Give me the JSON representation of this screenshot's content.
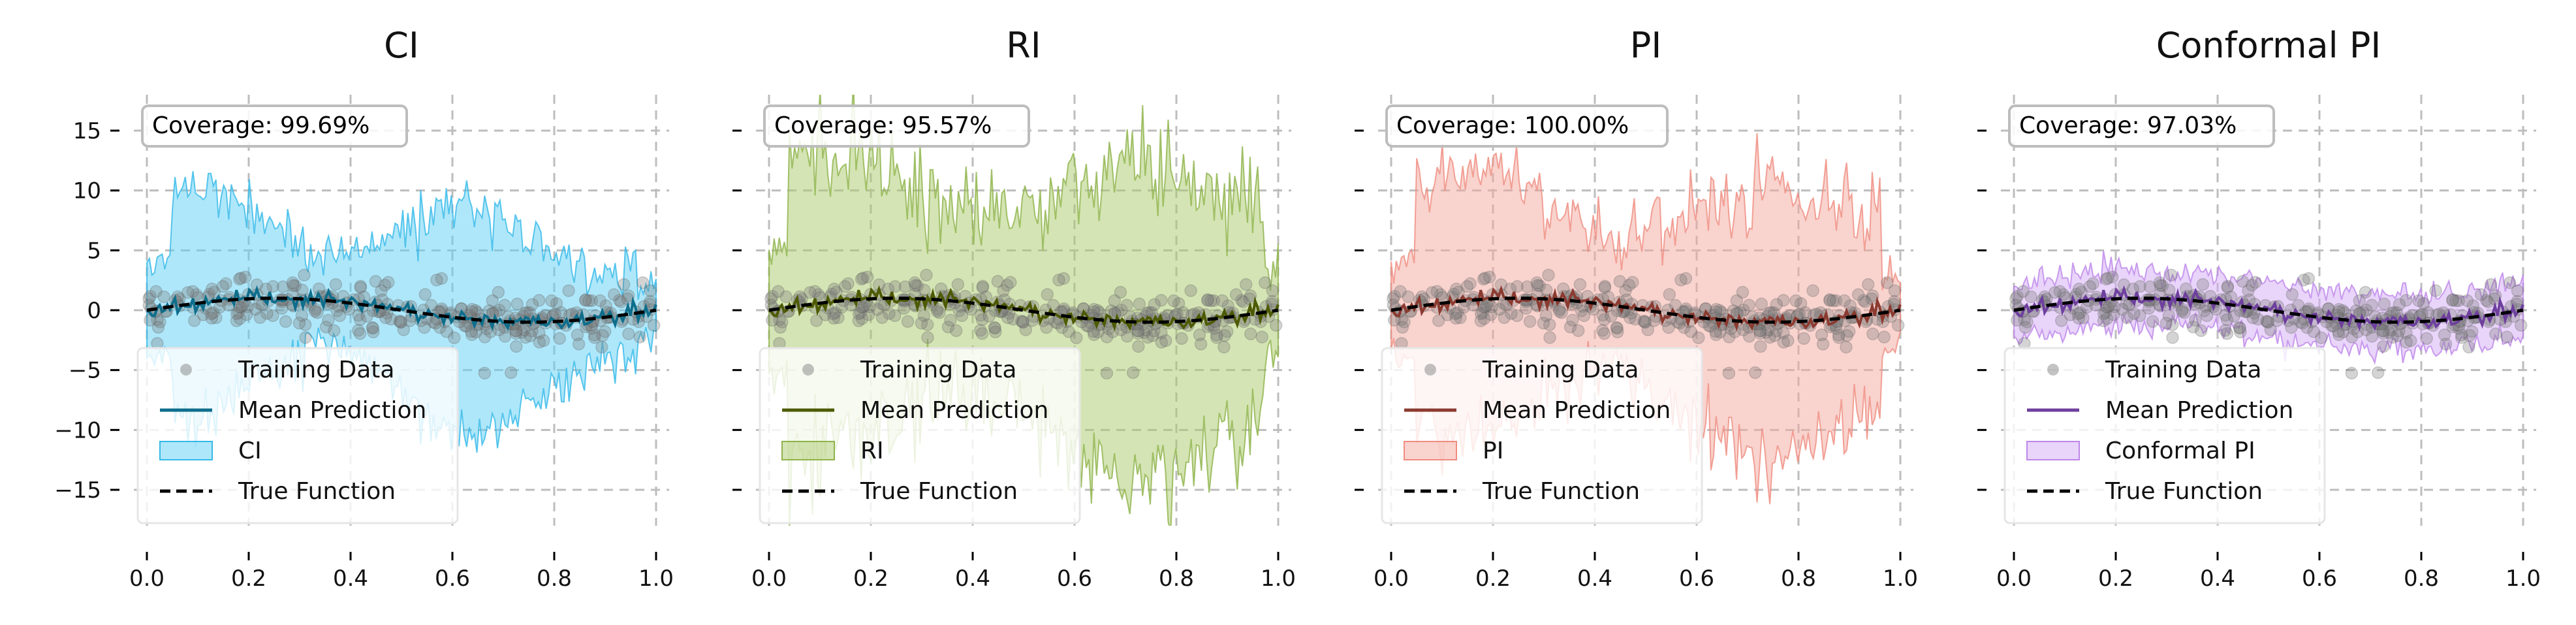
{
  "chart_data": [
    {
      "type": "line",
      "title": "CI",
      "xlim": [
        0,
        1
      ],
      "ylim": [
        -18,
        18
      ],
      "xticks": [
        "0.0",
        "0.2",
        "0.4",
        "0.6",
        "0.8",
        "1.0"
      ],
      "yticks": [
        "15",
        "10",
        "5",
        "0",
        "−5",
        "−10",
        "−15"
      ],
      "ytick_values": [
        15,
        10,
        5,
        0,
        -5,
        -10,
        -15
      ],
      "grid": true,
      "coverage_text": "Coverage: 99.69%",
      "band_type": "ci",
      "colors": {
        "mean": "#0e6e8c",
        "band_fill": "#5fd0f5",
        "band_edge": "#35b9e8"
      },
      "legend": [
        "Training Data",
        "Mean Prediction",
        "CI",
        "True Function"
      ],
      "legend_position": "lower-left"
    },
    {
      "type": "line",
      "title": "RI",
      "xlim": [
        0,
        1
      ],
      "ylim": [
        -18,
        18
      ],
      "xticks": [
        "0.0",
        "0.2",
        "0.4",
        "0.6",
        "0.8",
        "1.0"
      ],
      "yticks": [
        "15",
        "10",
        "5",
        "0",
        "−5",
        "−10",
        "−15"
      ],
      "ytick_values": [
        15,
        10,
        5,
        0,
        -5,
        -10,
        -15
      ],
      "grid": true,
      "coverage_text": "Coverage: 95.57%",
      "band_type": "ri",
      "colors": {
        "mean": "#4d5a00",
        "band_fill": "#a9c96a",
        "band_edge": "#8db34a"
      },
      "legend": [
        "Training Data",
        "Mean Prediction",
        "RI",
        "True Function"
      ],
      "legend_position": "lower-left"
    },
    {
      "type": "line",
      "title": "PI",
      "xlim": [
        0,
        1
      ],
      "ylim": [
        -18,
        18
      ],
      "xticks": [
        "0.0",
        "0.2",
        "0.4",
        "0.6",
        "0.8",
        "1.0"
      ],
      "yticks": [
        "15",
        "10",
        "5",
        "0",
        "−5",
        "−10",
        "−15"
      ],
      "ytick_values": [
        15,
        10,
        5,
        0,
        -5,
        -10,
        -15
      ],
      "grid": true,
      "coverage_text": "Coverage: 100.00%",
      "band_type": "pi",
      "colors": {
        "mean": "#8b3a30",
        "band_fill": "#f4a79e",
        "band_edge": "#ef8c80"
      },
      "legend": [
        "Training Data",
        "Mean Prediction",
        "PI",
        "True Function"
      ],
      "legend_position": "lower-left"
    },
    {
      "type": "line",
      "title": "Conformal PI",
      "xlim": [
        0,
        1
      ],
      "ylim": [
        -18,
        18
      ],
      "xticks": [
        "0.0",
        "0.2",
        "0.4",
        "0.6",
        "0.8",
        "1.0"
      ],
      "yticks": [
        "15",
        "10",
        "5",
        "0",
        "−5",
        "−10",
        "−15"
      ],
      "ytick_values": [
        15,
        10,
        5,
        0,
        -5,
        -10,
        -15
      ],
      "grid": true,
      "coverage_text": "Coverage: 97.03%",
      "band_type": "conformal",
      "colors": {
        "mean": "#6e3f9e",
        "band_fill": "#d4aaf5",
        "band_edge": "#bd86ea"
      },
      "legend": [
        "Training Data",
        "Mean Prediction",
        "Conformal PI",
        "True Function"
      ],
      "legend_position": "lower-left"
    }
  ]
}
